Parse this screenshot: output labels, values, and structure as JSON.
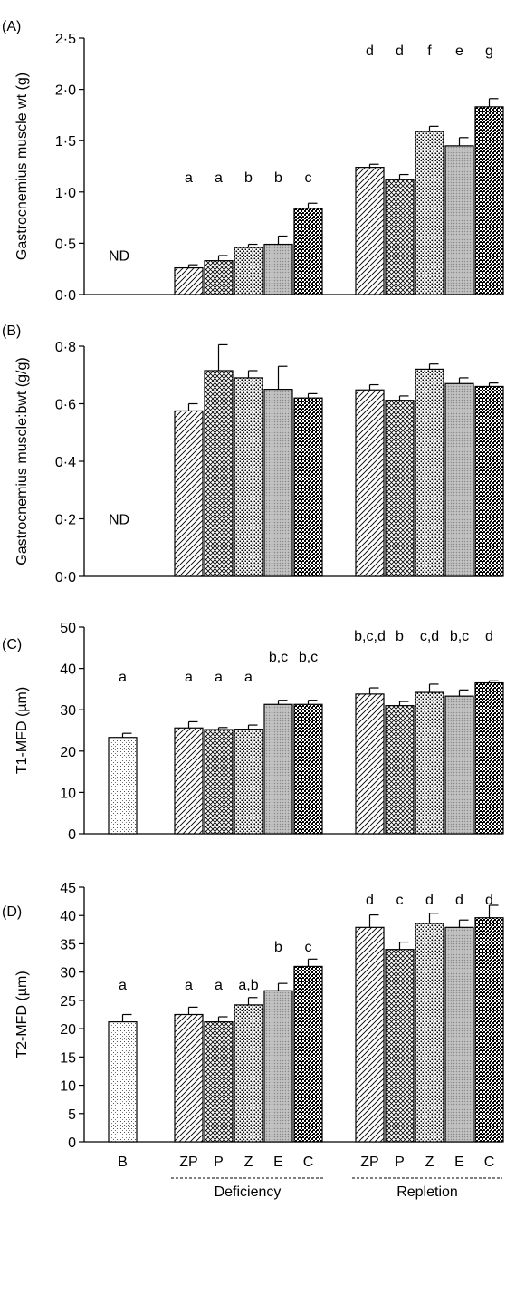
{
  "chart_data": [
    {
      "panel": "(A)",
      "type": "bar",
      "ylabel": "Gastrocnemius muscle wt (g)",
      "ylim": [
        0,
        2.5
      ],
      "yticks": [
        "0·0",
        "0·5",
        "1·0",
        "1·5",
        "2·0",
        "2·5"
      ],
      "categories": [
        "B",
        "ZP",
        "P",
        "Z",
        "E",
        "C",
        "ZP",
        "P",
        "Z",
        "E",
        "C"
      ],
      "groups": [
        "",
        "Deficiency",
        "Deficiency",
        "Deficiency",
        "Deficiency",
        "Deficiency",
        "Repletion",
        "Repletion",
        "Repletion",
        "Repletion",
        "Repletion"
      ],
      "values": [
        null,
        0.26,
        0.33,
        0.46,
        0.49,
        0.84,
        1.24,
        1.12,
        1.59,
        1.45,
        1.83
      ],
      "errors": [
        null,
        0.03,
        0.05,
        0.03,
        0.08,
        0.05,
        0.03,
        0.05,
        0.05,
        0.08,
        0.08
      ],
      "letters": [
        "",
        "a",
        "a",
        "b",
        "b",
        "c",
        "d",
        "d",
        "f",
        "e",
        "g"
      ],
      "nd_label": "ND"
    },
    {
      "panel": "(B)",
      "type": "bar",
      "ylabel": "Gastrocnemius muscle:bwt (g/g)",
      "ylim": [
        0,
        0.8
      ],
      "yticks": [
        "0·0",
        "0·2",
        "0·4",
        "0·6",
        "0·8"
      ],
      "categories": [
        "B",
        "ZP",
        "P",
        "Z",
        "E",
        "C",
        "ZP",
        "P",
        "Z",
        "E",
        "C"
      ],
      "values": [
        null,
        0.575,
        0.715,
        0.69,
        0.65,
        0.62,
        0.648,
        0.612,
        0.72,
        0.67,
        0.66
      ],
      "errors": [
        null,
        0.025,
        0.09,
        0.025,
        0.08,
        0.015,
        0.018,
        0.015,
        0.018,
        0.02,
        0.012
      ],
      "letters": [
        "",
        "",
        "",
        "",
        "",
        "",
        "",
        "",
        "",
        "",
        ""
      ],
      "nd_label": "ND"
    },
    {
      "panel": "(C)",
      "type": "bar",
      "ylabel": "T1-MFD (µm)",
      "ylim": [
        0,
        50
      ],
      "yticks": [
        "0",
        "10",
        "20",
        "30",
        "40",
        "50"
      ],
      "categories": [
        "B",
        "ZP",
        "P",
        "Z",
        "E",
        "C",
        "ZP",
        "P",
        "Z",
        "E",
        "C"
      ],
      "values": [
        23.3,
        25.6,
        25.2,
        25.3,
        31.3,
        31.3,
        33.8,
        31.0,
        34.2,
        33.3,
        36.5
      ],
      "errors": [
        1.0,
        1.5,
        0.5,
        1.0,
        1.0,
        1.0,
        1.5,
        1.0,
        2.0,
        1.5,
        0.5
      ],
      "letters": [
        "a",
        "a",
        "a",
        "a",
        "b,c",
        "b,c",
        "b,c,d",
        "b",
        "c,d",
        "b,c",
        "d"
      ]
    },
    {
      "panel": "(D)",
      "type": "bar",
      "ylabel": "T2-MFD (µm)",
      "ylim": [
        0,
        45
      ],
      "yticks": [
        "0",
        "5",
        "10",
        "15",
        "20",
        "25",
        "30",
        "35",
        "40",
        "45"
      ],
      "categories": [
        "B",
        "ZP",
        "P",
        "Z",
        "E",
        "C",
        "ZP",
        "P",
        "Z",
        "E",
        "C"
      ],
      "values": [
        21.2,
        22.5,
        21.2,
        24.2,
        26.7,
        31.0,
        37.9,
        34.0,
        38.6,
        37.9,
        39.6
      ],
      "errors": [
        1.3,
        1.3,
        0.9,
        1.3,
        1.3,
        1.3,
        2.2,
        1.3,
        1.8,
        1.3,
        2.2
      ],
      "letters": [
        "a",
        "a",
        "a",
        "a,b",
        "b",
        "c",
        "d",
        "c",
        "d",
        "d",
        "d"
      ],
      "group_labels": [
        "Deficiency",
        "Repletion"
      ]
    }
  ],
  "patterns": {
    "B": "dots-sparse",
    "ZP": "diagonal-lines",
    "P": "crosshatch",
    "Z": "dense-dots",
    "E": "fine-grey",
    "C": "checker"
  }
}
